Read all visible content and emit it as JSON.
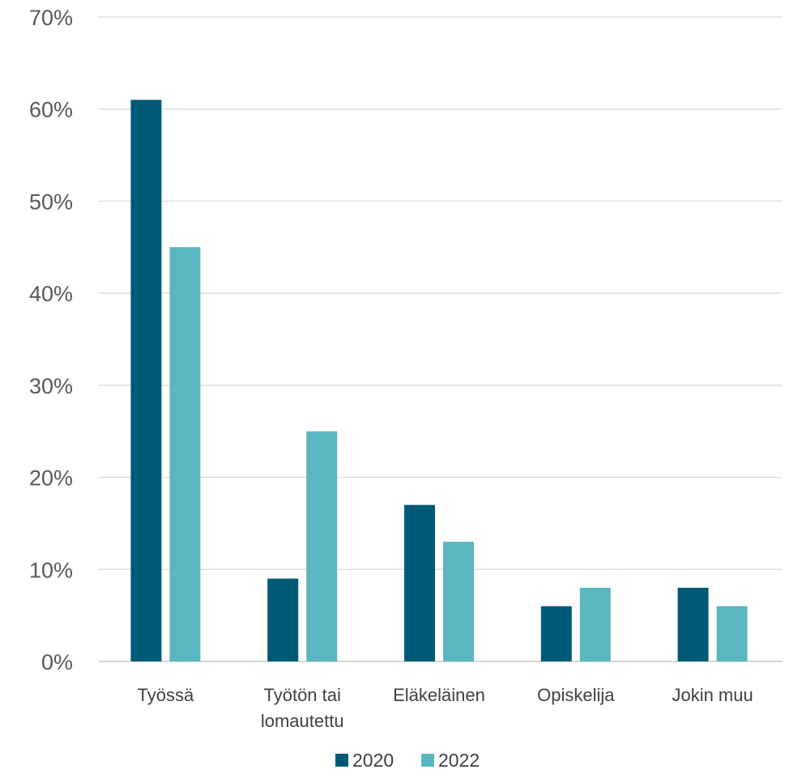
{
  "chart_data": {
    "type": "bar",
    "title": "",
    "xlabel": "",
    "ylabel": "",
    "categories": [
      [
        "Työssä"
      ],
      [
        "Työtön tai",
        "lomautettu"
      ],
      [
        "Eläkeläinen"
      ],
      [
        "Opiskelija"
      ],
      [
        "Jokin muu"
      ]
    ],
    "series": [
      {
        "name": "2020",
        "color": "#005a76",
        "values": [
          61,
          9,
          17,
          6,
          8
        ]
      },
      {
        "name": "2022",
        "color": "#5ab6c0",
        "values": [
          45,
          25,
          13,
          8,
          6
        ]
      }
    ],
    "ylim": [
      0,
      70
    ],
    "yticks": [
      0,
      10,
      20,
      30,
      40,
      50,
      60,
      70
    ],
    "ytick_labels": [
      "0%",
      "10%",
      "20%",
      "30%",
      "40%",
      "50%",
      "60%",
      "70%"
    ],
    "grid": true,
    "legend_position": "bottom"
  }
}
